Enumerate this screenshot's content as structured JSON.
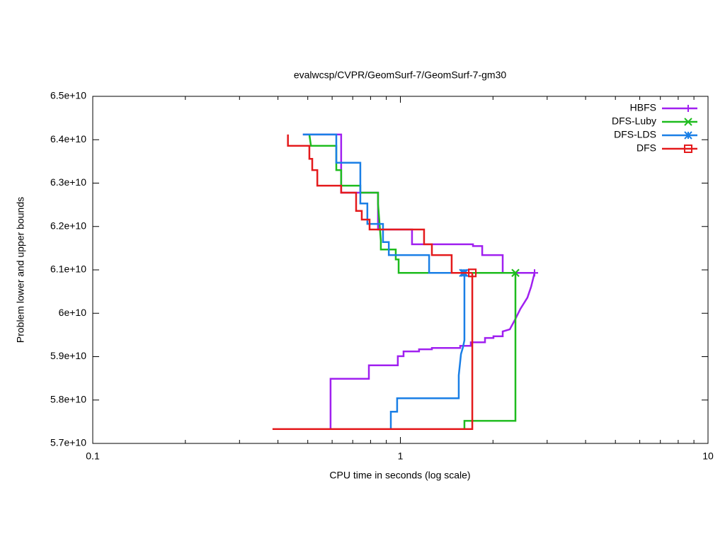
{
  "chart_data": {
    "type": "line",
    "title": "evalwcsp/CVPR/GeomSurf-7/GeomSurf-7-gm30",
    "xlabel": "CPU time in seconds (log scale)",
    "ylabel": "Problem lower and upper bounds",
    "xscale": "log",
    "xlim": [
      0.1,
      10
    ],
    "xticks": [
      0.1,
      1,
      10
    ],
    "xminorticks": [
      0.2,
      0.3,
      0.4,
      0.5,
      0.6,
      0.7,
      0.8,
      0.9,
      2,
      3,
      4,
      5,
      6,
      7,
      8,
      9
    ],
    "ylim": [
      57000000000,
      65000000000
    ],
    "yticks": [
      {
        "value": 57000000000,
        "label": "5.7e+10"
      },
      {
        "value": 58000000000,
        "label": "5.8e+10"
      },
      {
        "value": 59000000000,
        "label": "5.9e+10"
      },
      {
        "value": 60000000000,
        "label": "6e+10"
      },
      {
        "value": 61000000000,
        "label": "6.1e+10"
      },
      {
        "value": 62000000000,
        "label": "6.2e+10"
      },
      {
        "value": 63000000000,
        "label": "6.3e+10"
      },
      {
        "value": 64000000000,
        "label": "6.4e+10"
      },
      {
        "value": 65000000000,
        "label": "6.5e+10"
      }
    ],
    "legend": "top-right",
    "series": [
      {
        "name": "HBFS",
        "color": "#a020f0",
        "marker": "plus",
        "x": [
          0.482,
          0.642,
          0.642,
          0.846,
          0.846,
          1.091,
          1.091,
          1.722,
          1.722,
          1.845,
          1.845,
          2.151,
          2.151,
          2.73,
          null,
          0.593,
          0.593,
          0.79,
          0.79,
          0.981,
          0.981,
          1.024,
          1.024,
          1.15,
          1.15,
          1.266,
          1.266,
          1.565,
          1.565,
          1.694,
          1.694,
          1.884,
          1.884,
          2.007,
          2.007,
          2.151,
          2.151,
          2.268,
          2.366,
          2.455,
          2.588,
          2.66,
          2.73
        ],
        "values": [
          64120000000.0,
          64120000000.0,
          62780000000.0,
          62780000000.0,
          61930000000.0,
          61930000000.0,
          61590000000.0,
          61590000000.0,
          61550000000.0,
          61550000000.0,
          61340000000.0,
          61340000000.0,
          60930000000.0,
          60930000000.0,
          null,
          57330000000.0,
          58490000000.0,
          58490000000.0,
          58800000000.0,
          58800000000.0,
          59010000000.0,
          59010000000.0,
          59120000000.0,
          59120000000.0,
          59170000000.0,
          59170000000.0,
          59200000000.0,
          59200000000.0,
          59250000000.0,
          59250000000.0,
          59330000000.0,
          59330000000.0,
          59430000000.0,
          59430000000.0,
          59470000000.0,
          59470000000.0,
          59580000000.0,
          59630000000.0,
          59870000000.0,
          60100000000.0,
          60360000000.0,
          60610000000.0,
          60930000000.0
        ]
      },
      {
        "name": "DFS-Luby",
        "color": "#1ebc1e",
        "marker": "cross",
        "x": [
          0.506,
          0.512,
          0.619,
          0.619,
          0.642,
          0.642,
          0.741,
          0.741,
          0.846,
          0.846,
          0.864,
          0.864,
          0.966,
          0.966,
          0.987,
          0.987,
          2.366,
          null,
          1.615,
          1.615,
          2.366,
          2.366
        ],
        "values": [
          64120000000.0,
          63860000000.0,
          63860000000.0,
          63300000000.0,
          63300000000.0,
          62940000000.0,
          62940000000.0,
          62780000000.0,
          62780000000.0,
          62520000000.0,
          61670000000.0,
          61470000000.0,
          61470000000.0,
          61240000000.0,
          61240000000.0,
          60930000000.0,
          60930000000.0,
          null,
          57330000000.0,
          57520000000.0,
          57520000000.0,
          60930000000.0
        ]
      },
      {
        "name": "DFS-LDS",
        "color": "#1a7fe6",
        "marker": "star",
        "x": [
          0.482,
          0.619,
          0.619,
          0.741,
          0.741,
          0.781,
          0.781,
          0.878,
          0.878,
          0.917,
          0.917,
          1.24,
          1.24,
          1.598,
          null,
          0.931,
          0.931,
          0.976,
          0.976,
          1.548,
          1.548,
          1.574,
          1.598,
          1.615,
          1.615
        ],
        "values": [
          64120000000.0,
          64120000000.0,
          63470000000.0,
          63470000000.0,
          62530000000.0,
          62530000000.0,
          62060000000.0,
          62060000000.0,
          61640000000.0,
          61640000000.0,
          61340000000.0,
          61340000000.0,
          60930000000.0,
          60930000000.0,
          null,
          57330000000.0,
          57730000000.0,
          57730000000.0,
          58040000000.0,
          58040000000.0,
          58570000000.0,
          59060000000.0,
          59220000000.0,
          59380000000.0,
          60930000000.0
        ]
      },
      {
        "name": "DFS",
        "color": "#e41a1c",
        "marker": "square",
        "x": [
          0.431,
          0.431,
          0.506,
          0.506,
          0.517,
          0.517,
          0.537,
          0.537,
          0.642,
          0.642,
          0.718,
          0.718,
          0.749,
          0.749,
          0.794,
          0.794,
          1.194,
          1.194,
          1.266,
          1.266,
          1.468,
          1.468,
          1.713,
          null,
          0.384,
          1.713,
          1.713
        ],
        "values": [
          64120000000.0,
          63860000000.0,
          63860000000.0,
          63560000000.0,
          63560000000.0,
          63300000000.0,
          63300000000.0,
          62940000000.0,
          62940000000.0,
          62780000000.0,
          62780000000.0,
          62360000000.0,
          62360000000.0,
          62160000000.0,
          62160000000.0,
          61930000000.0,
          61930000000.0,
          61590000000.0,
          61590000000.0,
          61340000000.0,
          61340000000.0,
          60930000000.0,
          60930000000.0,
          null,
          57330000000.0,
          57330000000.0,
          60930000000.0
        ]
      }
    ]
  }
}
